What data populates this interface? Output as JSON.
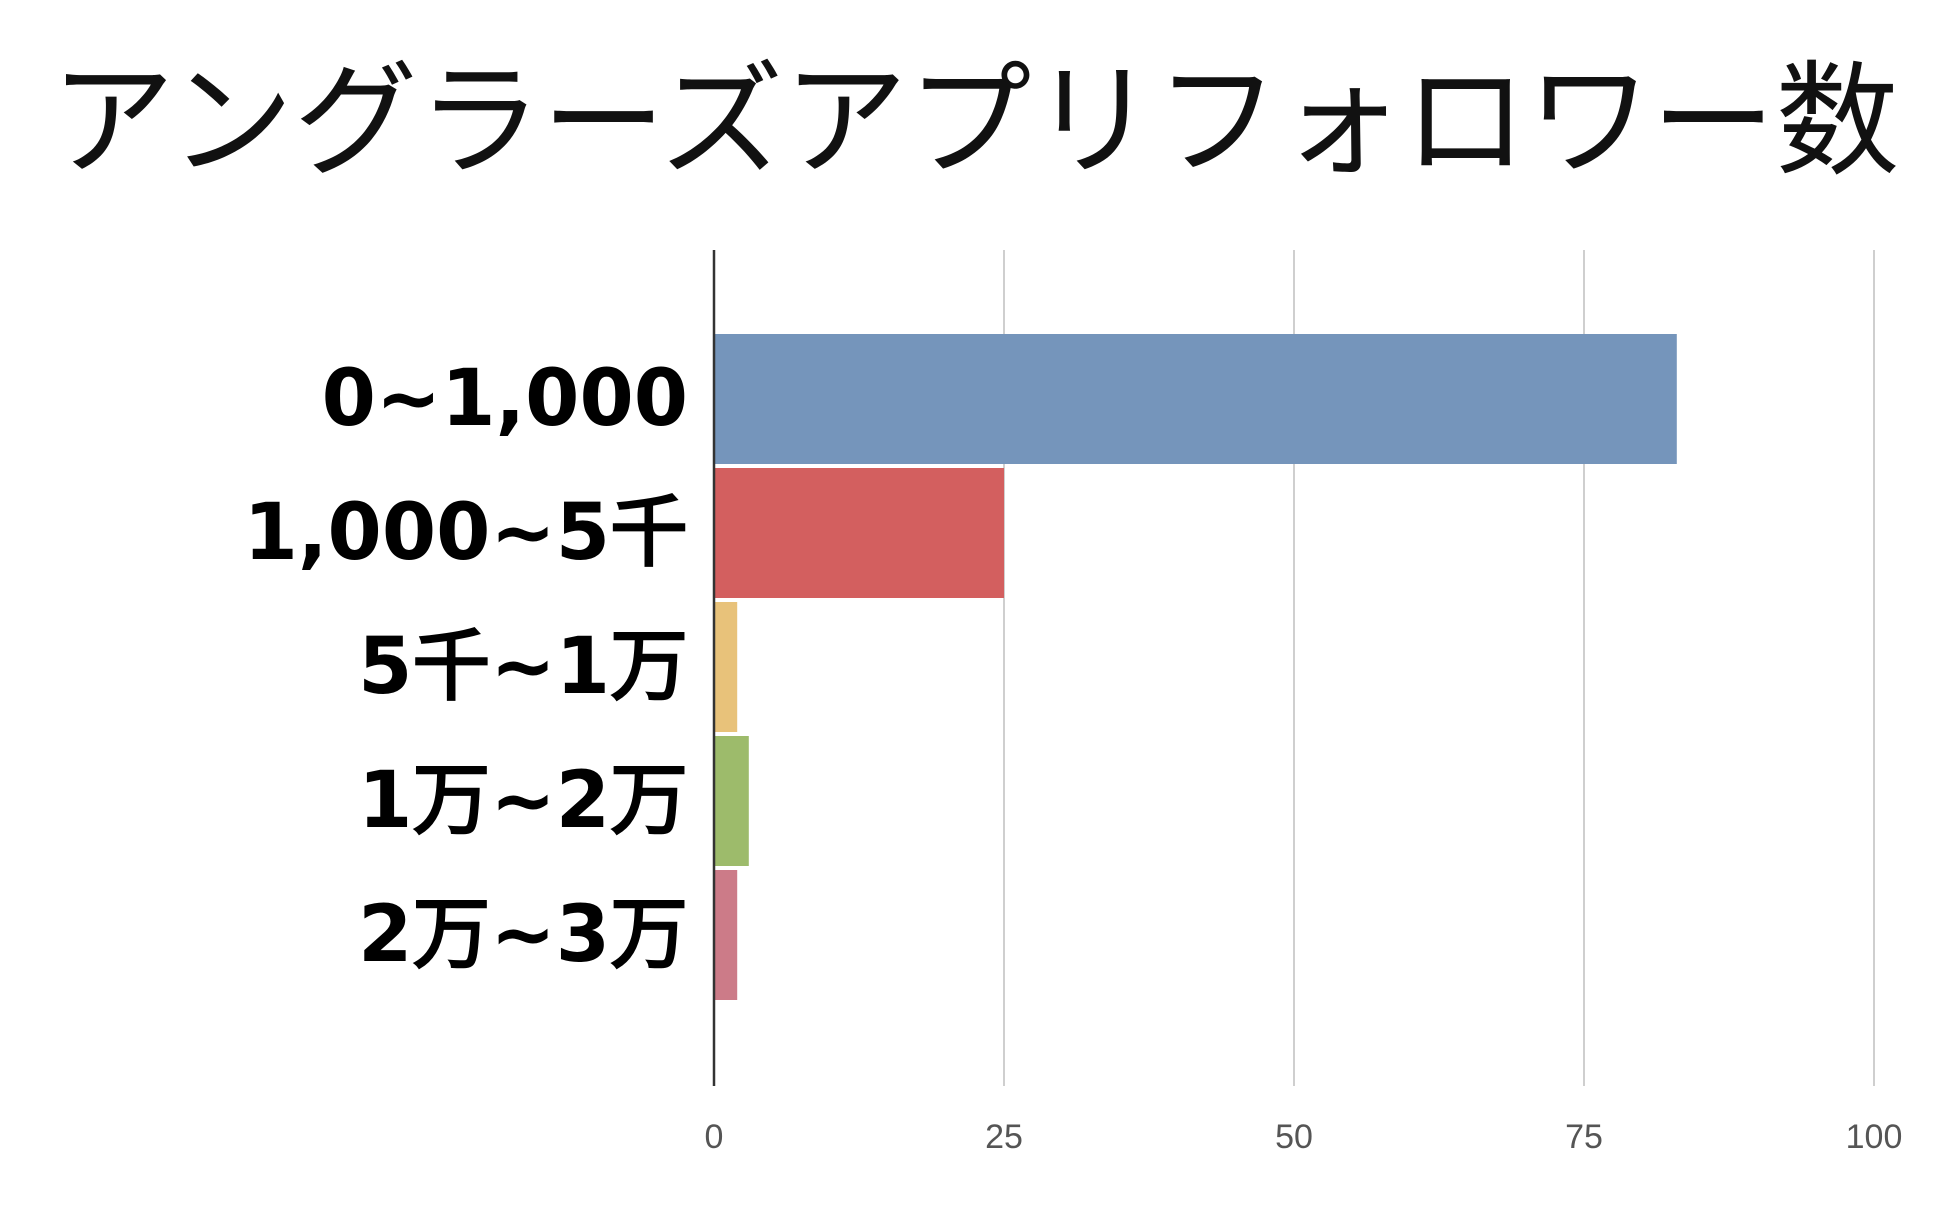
{
  "chart_data": {
    "type": "bar",
    "orientation": "horizontal",
    "title": "アングラーズアプリフォロワー数",
    "categories": [
      "0~1,000",
      "1,000~5千",
      "5千~1万",
      "1万~2万",
      "2万~3万"
    ],
    "values": [
      83,
      25,
      2,
      3,
      2
    ],
    "colors": [
      "#7595bb",
      "#d35f5f",
      "#e8c27a",
      "#9dbb6b",
      "#cc7b88"
    ],
    "xlim": [
      0,
      100
    ],
    "xticks": [
      0,
      25,
      50,
      75,
      100
    ],
    "xlabel": "",
    "ylabel": "",
    "grid": true,
    "legend": "none"
  }
}
